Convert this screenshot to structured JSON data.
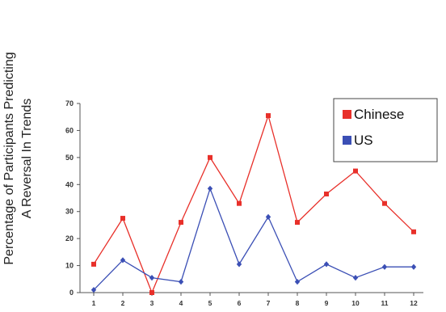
{
  "chart_data": {
    "type": "line",
    "x": [
      "1",
      "2",
      "3",
      "4",
      "5",
      "6",
      "7",
      "8",
      "9",
      "10",
      "11",
      "12"
    ],
    "series": [
      {
        "name": "Chinese",
        "color": "#e8302a",
        "marker": "square",
        "values": [
          10.5,
          27.5,
          0,
          26,
          50,
          33,
          65.5,
          26,
          36.5,
          45,
          33,
          22.5
        ]
      },
      {
        "name": "US",
        "color": "#3b4fb5",
        "marker": "diamond",
        "values": [
          1,
          12,
          5.5,
          4,
          38.5,
          10.5,
          28,
          4,
          10.5,
          5.5,
          9.5,
          9.5
        ]
      }
    ],
    "ylabel_line1": "Percentage of Participants Predicting",
    "ylabel_line2": "A Reversal In Trends",
    "xlabel": "",
    "title": "",
    "ylim": [
      0,
      70
    ],
    "yticks": [
      0,
      10,
      20,
      30,
      40,
      50,
      60,
      70
    ],
    "grid": false,
    "legend_position": "top-right"
  }
}
